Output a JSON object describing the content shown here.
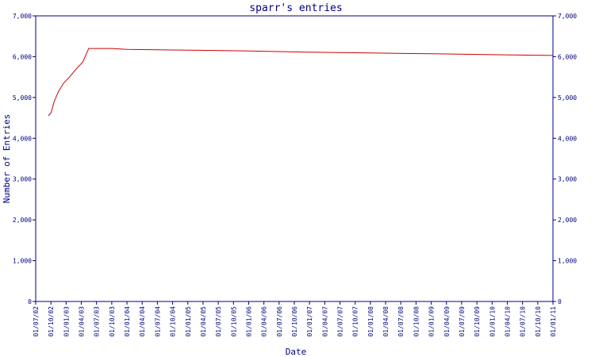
{
  "chart_data": {
    "type": "line",
    "title": "sparr's entries",
    "xlabel": "Date",
    "ylabel": "Number of Entries",
    "ylim": [
      0,
      7000
    ],
    "yticks": [
      0,
      1000,
      2000,
      3000,
      4000,
      5000,
      6000,
      7000
    ],
    "ytick_labels": [
      "0",
      "1,000",
      "2,000",
      "3,000",
      "4,000",
      "5,000",
      "6,000",
      "7,000"
    ],
    "xlim": [
      "2002-07-01",
      "2011-01-01"
    ],
    "xtick_labels": [
      "01/07/02",
      "01/10/02",
      "01/01/03",
      "01/04/03",
      "01/07/03",
      "01/10/03",
      "01/01/04",
      "01/04/04",
      "01/07/04",
      "01/10/04",
      "01/01/05",
      "01/04/05",
      "01/07/05",
      "01/10/05",
      "01/01/06",
      "01/04/06",
      "01/07/06",
      "01/10/06",
      "01/01/07",
      "01/04/07",
      "01/07/07",
      "01/10/07",
      "01/01/08",
      "01/04/08",
      "01/07/08",
      "01/10/08",
      "01/01/09",
      "01/04/09",
      "01/07/09",
      "01/10/09",
      "01/01/10",
      "01/04/10",
      "01/07/10",
      "01/10/10",
      "01/01/11"
    ],
    "grid": false,
    "colors": {
      "axis": "#000080",
      "line": "#cc0000",
      "text": "#000080"
    },
    "series": [
      {
        "color": "#cc0000",
        "points": [
          [
            "2002-09-15",
            4550
          ],
          [
            "2002-10-01",
            4620
          ],
          [
            "2002-10-20",
            4900
          ],
          [
            "2002-11-15",
            5150
          ],
          [
            "2002-12-15",
            5350
          ],
          [
            "2003-01-20",
            5500
          ],
          [
            "2003-02-25",
            5680
          ],
          [
            "2003-04-10",
            5870
          ],
          [
            "2003-05-15",
            6200
          ],
          [
            "2003-10-01",
            6200
          ],
          [
            "2004-01-01",
            6180
          ],
          [
            "2005-01-01",
            6160
          ],
          [
            "2006-01-01",
            6140
          ],
          [
            "2007-01-01",
            6110
          ],
          [
            "2008-01-01",
            6090
          ],
          [
            "2009-01-01",
            6070
          ],
          [
            "2010-01-01",
            6050
          ],
          [
            "2011-01-01",
            6030
          ]
        ]
      }
    ]
  }
}
